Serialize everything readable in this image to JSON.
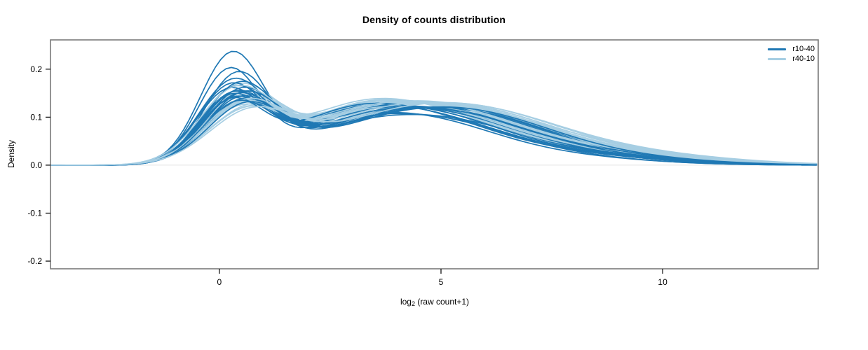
{
  "title": "Density of counts distribution",
  "chart_data": {
    "type": "line",
    "title": "Density of counts distribution",
    "xlabel": "log2 (raw count+1)",
    "xlabel_parts": {
      "base": "log",
      "sub": "2",
      "rest": " (raw count+1)"
    },
    "ylabel": "Density",
    "xlim": [
      -3.81,
      13.51
    ],
    "ylim": [
      -0.216,
      0.261
    ],
    "x_ticks": [
      0,
      5,
      10
    ],
    "x_tick_labels": [
      "0",
      "5",
      "10"
    ],
    "y_ticks": [
      0.2,
      0.1,
      0.0,
      -0.1,
      -0.2
    ],
    "y_tick_labels": [
      "0.2",
      "0.1",
      "0.0",
      "-0.1",
      "-0.2"
    ],
    "grid": false,
    "zero_line": {
      "y": 0,
      "color": "#e4e4e4"
    },
    "box_color": "#7a7a7a",
    "legend_position": "top-right-inside",
    "curve_model": "each curve = sum of 4 gaussian components [height, mu, sigma]; x in log2(raw count+1) units, y = density",
    "series": [
      {
        "name": "r10-40",
        "color": "#1F78B4",
        "n_curves": 20,
        "curves": [
          [
            0.225,
            0.28,
            0.72,
            0.045,
            2.6,
            1.3,
            0.085,
            4.7,
            1.7,
            0.018,
            7.4,
            2.0
          ],
          [
            0.19,
            0.22,
            0.7,
            0.05,
            2.5,
            1.3,
            0.08,
            4.5,
            1.6,
            0.022,
            7.0,
            2.1
          ],
          [
            0.183,
            0.4,
            0.75,
            0.048,
            2.8,
            1.35,
            0.082,
            5.0,
            1.7,
            0.02,
            7.8,
            2.0
          ],
          [
            0.165,
            0.3,
            0.78,
            0.055,
            2.7,
            1.4,
            0.09,
            4.8,
            1.7,
            0.024,
            7.6,
            2.2
          ],
          [
            0.16,
            0.45,
            0.8,
            0.052,
            2.9,
            1.4,
            0.095,
            5.2,
            1.8,
            0.02,
            8.0,
            2.0
          ],
          [
            0.155,
            0.25,
            0.75,
            0.06,
            2.6,
            1.35,
            0.088,
            4.6,
            1.65,
            0.026,
            7.2,
            2.1
          ],
          [
            0.15,
            0.35,
            0.78,
            0.058,
            2.8,
            1.4,
            0.092,
            5.0,
            1.75,
            0.022,
            7.9,
            2.2
          ],
          [
            0.148,
            0.5,
            0.82,
            0.05,
            3.0,
            1.45,
            0.098,
            5.4,
            1.8,
            0.018,
            8.4,
            2.0
          ],
          [
            0.145,
            0.2,
            0.74,
            0.062,
            2.5,
            1.3,
            0.085,
            4.4,
            1.6,
            0.028,
            7.0,
            2.2
          ],
          [
            0.142,
            0.38,
            0.8,
            0.055,
            2.9,
            1.4,
            0.093,
            5.1,
            1.75,
            0.021,
            8.1,
            2.1
          ],
          [
            0.14,
            0.55,
            0.85,
            0.048,
            3.1,
            1.5,
            0.1,
            5.5,
            1.85,
            0.016,
            8.6,
            2.0
          ],
          [
            0.138,
            0.3,
            0.76,
            0.06,
            2.7,
            1.35,
            0.087,
            4.7,
            1.7,
            0.025,
            7.5,
            2.15
          ],
          [
            0.135,
            0.42,
            0.8,
            0.056,
            2.85,
            1.4,
            0.094,
            5.2,
            1.8,
            0.02,
            8.2,
            2.1
          ],
          [
            0.132,
            0.26,
            0.74,
            0.063,
            2.55,
            1.3,
            0.084,
            4.5,
            1.65,
            0.027,
            7.1,
            2.2
          ],
          [
            0.13,
            0.48,
            0.83,
            0.052,
            3.0,
            1.45,
            0.097,
            5.35,
            1.8,
            0.019,
            8.3,
            2.05
          ],
          [
            0.128,
            0.33,
            0.77,
            0.058,
            2.75,
            1.38,
            0.09,
            4.9,
            1.72,
            0.023,
            7.7,
            2.12
          ],
          [
            0.125,
            0.52,
            0.84,
            0.05,
            3.05,
            1.48,
            0.099,
            5.45,
            1.82,
            0.017,
            8.5,
            2.0
          ],
          [
            0.122,
            0.24,
            0.73,
            0.064,
            2.5,
            1.3,
            0.083,
            4.35,
            1.6,
            0.029,
            6.9,
            2.25
          ],
          [
            0.12,
            0.4,
            0.8,
            0.057,
            2.9,
            1.42,
            0.092,
            5.15,
            1.76,
            0.021,
            8.0,
            2.1
          ],
          [
            0.118,
            0.6,
            0.88,
            0.046,
            3.2,
            1.52,
            0.101,
            5.6,
            1.88,
            0.015,
            8.8,
            2.0
          ]
        ]
      },
      {
        "name": "r40-10",
        "color": "#A6CEE3",
        "n_curves": 20,
        "curves": [
          [
            0.1,
            0.6,
            0.95,
            0.055,
            3.0,
            1.5,
            0.1,
            5.2,
            2.0,
            0.03,
            8.5,
            2.3
          ],
          [
            0.15,
            0.4,
            0.85,
            0.058,
            2.8,
            1.45,
            0.095,
            4.8,
            1.8,
            0.028,
            7.8,
            2.2
          ],
          [
            0.135,
            0.55,
            0.9,
            0.052,
            3.0,
            1.5,
            0.102,
            5.3,
            1.9,
            0.024,
            8.4,
            2.2
          ],
          [
            0.13,
            0.35,
            0.82,
            0.06,
            2.7,
            1.4,
            0.092,
            4.6,
            1.75,
            0.03,
            7.5,
            2.3
          ],
          [
            0.128,
            0.5,
            0.88,
            0.055,
            2.95,
            1.48,
            0.098,
            5.1,
            1.85,
            0.026,
            8.2,
            2.25
          ],
          [
            0.125,
            0.65,
            0.92,
            0.048,
            3.15,
            1.55,
            0.105,
            5.5,
            1.95,
            0.022,
            8.8,
            2.2
          ],
          [
            0.122,
            0.3,
            0.8,
            0.062,
            2.65,
            1.38,
            0.09,
            4.5,
            1.7,
            0.032,
            7.3,
            2.35
          ],
          [
            0.12,
            0.45,
            0.86,
            0.056,
            2.9,
            1.45,
            0.096,
            5.0,
            1.82,
            0.027,
            8.0,
            2.25
          ],
          [
            0.118,
            0.58,
            0.9,
            0.05,
            3.1,
            1.52,
            0.103,
            5.4,
            1.92,
            0.023,
            8.6,
            2.2
          ],
          [
            0.115,
            0.38,
            0.84,
            0.06,
            2.75,
            1.42,
            0.093,
            4.7,
            1.78,
            0.029,
            7.6,
            2.3
          ],
          [
            0.112,
            0.52,
            0.88,
            0.054,
            2.95,
            1.5,
            0.1,
            5.2,
            1.88,
            0.025,
            8.3,
            2.25
          ],
          [
            0.11,
            0.68,
            0.94,
            0.046,
            3.2,
            1.58,
            0.107,
            5.6,
            1.98,
            0.021,
            9.0,
            2.2
          ],
          [
            0.108,
            0.32,
            0.82,
            0.063,
            2.6,
            1.38,
            0.089,
            4.4,
            1.7,
            0.033,
            7.2,
            2.4
          ],
          [
            0.106,
            0.47,
            0.86,
            0.057,
            2.85,
            1.46,
            0.097,
            5.05,
            1.84,
            0.028,
            7.9,
            2.3
          ],
          [
            0.104,
            0.62,
            0.92,
            0.049,
            3.1,
            1.54,
            0.104,
            5.45,
            1.94,
            0.024,
            8.7,
            2.25
          ],
          [
            0.115,
            0.42,
            0.85,
            0.059,
            2.8,
            1.44,
            0.094,
            4.85,
            1.8,
            0.03,
            7.7,
            2.3
          ],
          [
            0.145,
            0.36,
            0.83,
            0.061,
            2.7,
            1.4,
            0.091,
            4.6,
            1.74,
            0.031,
            7.4,
            2.35
          ],
          [
            0.119,
            0.56,
            0.89,
            0.053,
            3.0,
            1.5,
            0.101,
            5.3,
            1.9,
            0.026,
            8.45,
            2.25
          ],
          [
            0.113,
            0.44,
            0.86,
            0.058,
            2.87,
            1.46,
            0.095,
            4.95,
            1.82,
            0.029,
            7.85,
            2.3
          ],
          [
            0.102,
            0.7,
            0.96,
            0.047,
            3.25,
            1.6,
            0.106,
            5.65,
            2.0,
            0.022,
            9.2,
            2.2
          ]
        ]
      }
    ]
  },
  "legend": {
    "items": [
      {
        "label": "r10-40",
        "color": "#1F78B4"
      },
      {
        "label": "r40-10",
        "color": "#A6CEE3"
      }
    ]
  }
}
